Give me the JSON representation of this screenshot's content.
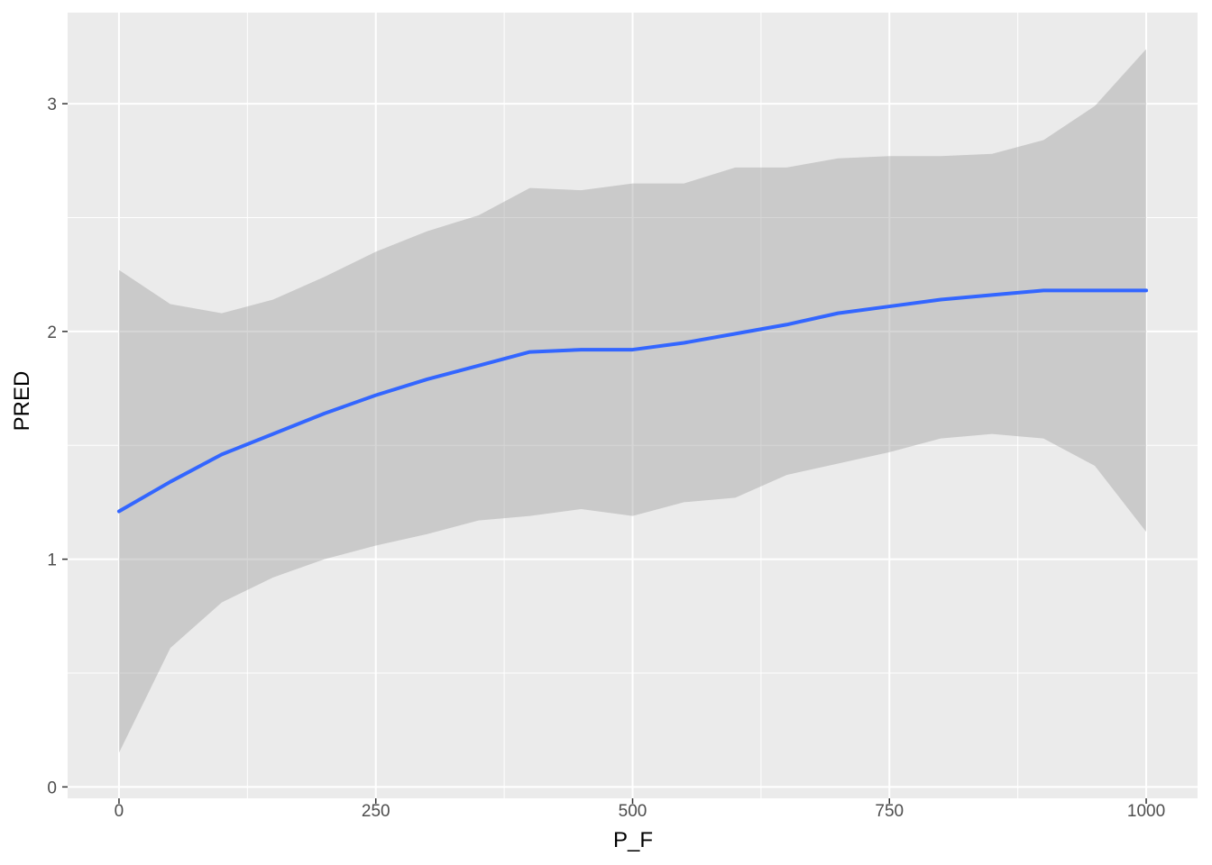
{
  "chart_data": {
    "type": "smooth",
    "x_label": "P_F",
    "y_label": "PRED",
    "x": [
      0,
      50,
      100,
      150,
      200,
      250,
      300,
      350,
      400,
      450,
      500,
      550,
      600,
      650,
      700,
      750,
      800,
      850,
      900,
      950,
      1000
    ],
    "series": [
      {
        "color": "#3366ff",
        "ribbon_color": "#999999",
        "values": [
          1.21,
          1.34,
          1.46,
          1.55,
          1.64,
          1.72,
          1.79,
          1.85,
          1.91,
          1.92,
          1.92,
          1.95,
          1.99,
          2.03,
          2.08,
          2.11,
          2.14,
          2.16,
          2.18,
          2.18,
          2.18
        ],
        "lower": [
          0.15,
          0.61,
          0.81,
          0.92,
          1.0,
          1.06,
          1.11,
          1.17,
          1.19,
          1.22,
          1.19,
          1.25,
          1.27,
          1.37,
          1.42,
          1.47,
          1.53,
          1.55,
          1.53,
          1.41,
          1.12
        ],
        "upper": [
          2.27,
          2.12,
          2.08,
          2.14,
          2.24,
          2.35,
          2.44,
          2.51,
          2.63,
          2.62,
          2.65,
          2.65,
          2.72,
          2.72,
          2.76,
          2.77,
          2.77,
          2.78,
          2.84,
          2.99,
          3.24
        ]
      }
    ],
    "xlim": [
      -50,
      1050
    ],
    "ylim": [
      -0.05,
      3.4
    ],
    "xticks": [
      0,
      250,
      500,
      750,
      1000
    ],
    "yticks": [
      0,
      1,
      2,
      3
    ],
    "x_minor_ticks": [
      125,
      375,
      625,
      875
    ],
    "y_minor_ticks": [
      0.5,
      1.5,
      2.5
    ],
    "grid": true
  }
}
